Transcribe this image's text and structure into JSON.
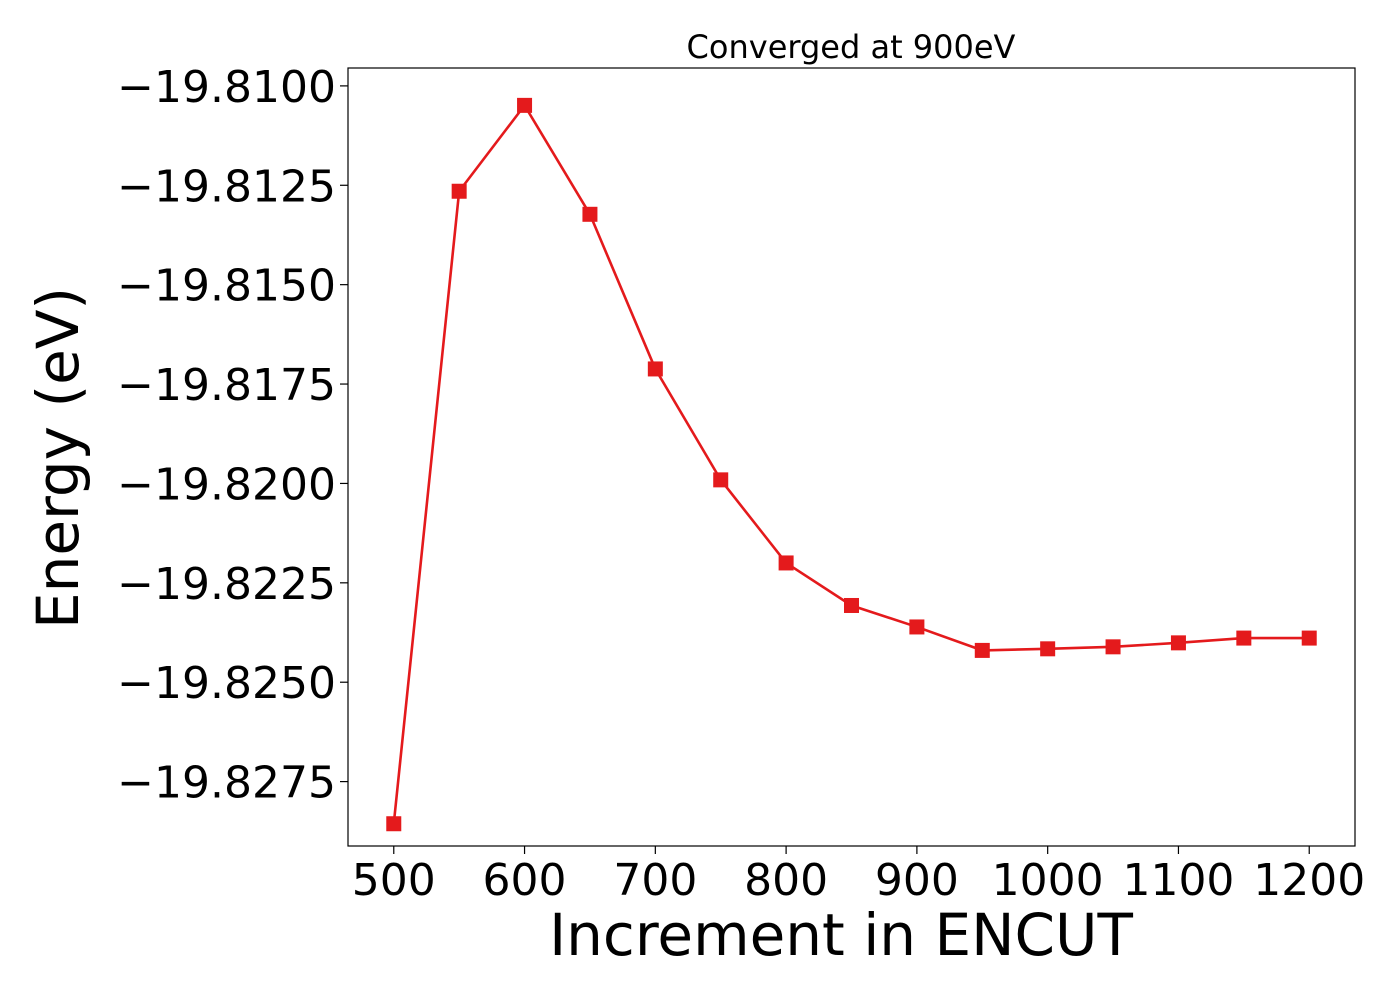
{
  "chart_data": {
    "type": "line",
    "title": "Converged at 900eV",
    "xlabel": "Increment in ENCUT",
    "ylabel": "Energy (eV)",
    "x": [
      500,
      550,
      600,
      650,
      700,
      750,
      800,
      850,
      900,
      950,
      1000,
      1050,
      1100,
      1150,
      1200
    ],
    "series": [
      {
        "values": [
          -19.82856,
          -19.81265,
          -19.81049,
          -19.81323,
          -19.81712,
          -19.81991,
          -19.822,
          -19.82307,
          -19.82361,
          -19.8242,
          -19.82416,
          -19.82411,
          -19.82401,
          -19.82389,
          -19.82389
        ],
        "color": "#e41a1c",
        "marker": "square"
      }
    ],
    "xlim": [
      465,
      1235
    ],
    "ylim": [
      -19.82912,
      -19.80955
    ],
    "xticks": [
      500,
      600,
      700,
      800,
      900,
      1000,
      1100,
      1200
    ],
    "xtick_labels": [
      "500",
      "600",
      "700",
      "800",
      "900",
      "1000",
      "1100",
      "1200"
    ],
    "yticks": [
      -19.81,
      -19.8125,
      -19.815,
      -19.8175,
      -19.82,
      -19.8225,
      -19.825,
      -19.8275
    ],
    "ytick_labels": [
      "−19.8100",
      "−19.8125",
      "−19.8150",
      "−19.8175",
      "−19.8200",
      "−19.8225",
      "−19.8250",
      "−19.8275"
    ],
    "grid": false,
    "legend": "none"
  }
}
